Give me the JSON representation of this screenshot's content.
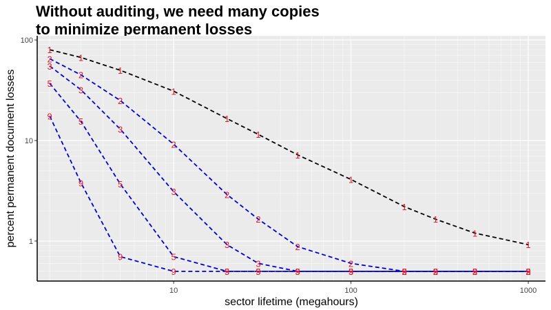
{
  "chart_data": {
    "type": "line",
    "title_lines": [
      "Without auditing, we need many copies",
      "to minimize permanent losses"
    ],
    "xlabel": "sector lifetime (megahours)",
    "ylabel": "percent permanent document losses",
    "x_scale": "log",
    "y_scale": "log",
    "xlim": [
      1.7,
      1250
    ],
    "ylim": [
      0.4,
      110
    ],
    "x_ticks": [
      10,
      100,
      1000
    ],
    "x_tick_labels": [
      "10",
      "100",
      "1000"
    ],
    "y_ticks": [
      1,
      10,
      100
    ],
    "y_tick_labels": [
      "1",
      "10",
      "100"
    ],
    "grid": true,
    "colors": {
      "panel": "#ebebeb",
      "grid": "#ffffff",
      "series_one": "#000000",
      "series_multi": "#0000cc",
      "point_label": "#e8192c"
    },
    "series": [
      {
        "label": "1",
        "color": "#000000",
        "x": [
          2,
          3,
          5,
          10,
          20,
          30,
          50,
          100,
          200,
          300,
          500,
          1000
        ],
        "y": [
          80,
          67,
          50,
          31,
          16.5,
          11.5,
          7.2,
          4.1,
          2.2,
          1.65,
          1.2,
          0.92
        ]
      },
      {
        "label": "2",
        "color": "#0000cc",
        "x": [
          2,
          3,
          5,
          10,
          20,
          30,
          50,
          100,
          200,
          300,
          500,
          1000
        ],
        "y": [
          65,
          45,
          25,
          9.2,
          2.9,
          1.65,
          0.88,
          0.6,
          0.5,
          0.5,
          0.5,
          0.5
        ]
      },
      {
        "label": "3",
        "color": "#0000cc",
        "x": [
          2,
          3,
          5,
          10,
          20,
          30,
          50,
          100,
          200,
          300,
          500,
          1000
        ],
        "y": [
          55,
          32,
          13,
          3.1,
          0.92,
          0.6,
          0.5,
          0.5,
          0.5,
          0.5,
          0.5,
          0.5
        ]
      },
      {
        "label": "5",
        "color": "#0000cc",
        "x": [
          2,
          3,
          5,
          10,
          20,
          30,
          50,
          100,
          200,
          300,
          500,
          1000
        ],
        "y": [
          37,
          15.5,
          3.7,
          0.7,
          0.5,
          0.5,
          0.5,
          0.5,
          0.5,
          0.5,
          0.5,
          0.5
        ]
      },
      {
        "label": "9",
        "color": "#0000cc",
        "x": [
          2,
          3,
          5,
          10,
          20,
          30,
          50,
          100,
          200,
          300,
          500,
          1000
        ],
        "y": [
          17.5,
          3.8,
          0.7,
          0.5,
          0.5,
          0.5,
          0.5,
          0.5,
          0.5,
          0.5,
          0.5,
          0.5
        ]
      }
    ]
  }
}
